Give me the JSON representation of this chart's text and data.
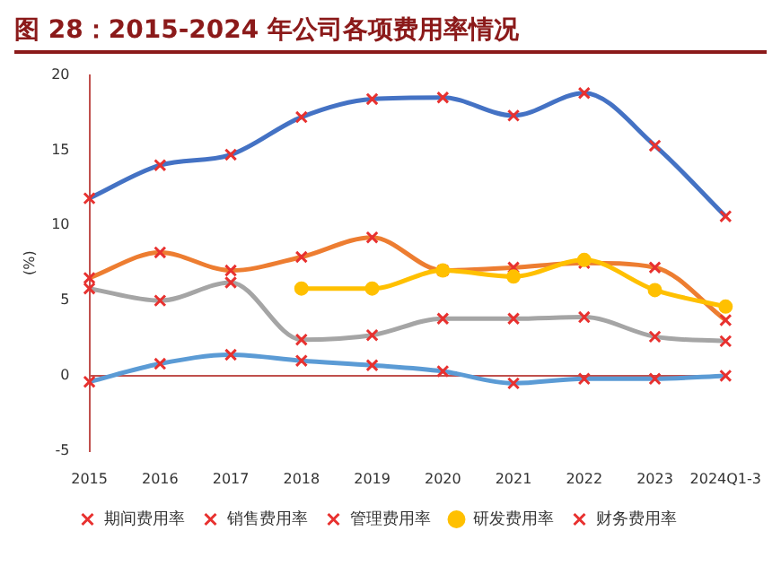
{
  "chart_data": {
    "type": "line",
    "title": "图 28：2015-2024 年公司各项费用率情况",
    "ylabel": "(%)",
    "categories": [
      "2015",
      "2016",
      "2017",
      "2018",
      "2019",
      "2020",
      "2021",
      "2022",
      "2023",
      "2024Q1-3"
    ],
    "series": [
      {
        "name": "期间费用率",
        "color": "#4472c4",
        "values": [
          11.8,
          14.0,
          14.7,
          17.2,
          18.4,
          18.5,
          17.3,
          18.8,
          15.3,
          10.6
        ]
      },
      {
        "name": "销售费用率",
        "color": "#ed7d31",
        "values": [
          6.5,
          8.2,
          7.0,
          7.9,
          9.2,
          7.0,
          7.2,
          7.5,
          7.2,
          3.7
        ]
      },
      {
        "name": "管理费用率",
        "color": "#a5a5a5",
        "values": [
          5.8,
          5.0,
          6.2,
          2.4,
          2.7,
          3.8,
          3.8,
          3.9,
          2.6,
          2.3
        ]
      },
      {
        "name": "研发费用率",
        "color": "#ffc000",
        "marker": "circle",
        "values": [
          null,
          null,
          null,
          5.8,
          5.8,
          7.0,
          6.6,
          7.7,
          5.7,
          4.6
        ]
      },
      {
        "name": "财务费用率",
        "color": "#5b9bd5",
        "values": [
          -0.4,
          0.8,
          1.4,
          1.0,
          0.7,
          0.3,
          -0.5,
          -0.2,
          -0.2,
          0.0
        ]
      }
    ],
    "ref_lines": [
      {
        "axis": "y",
        "value": 0,
        "color": "#c0504d"
      }
    ],
    "ylim": [
      -5,
      20
    ],
    "yticks": [
      -5,
      0,
      5,
      10,
      15,
      20
    ],
    "grid": false,
    "legend": "bottom",
    "marker": "cross",
    "line_style": "solid"
  }
}
